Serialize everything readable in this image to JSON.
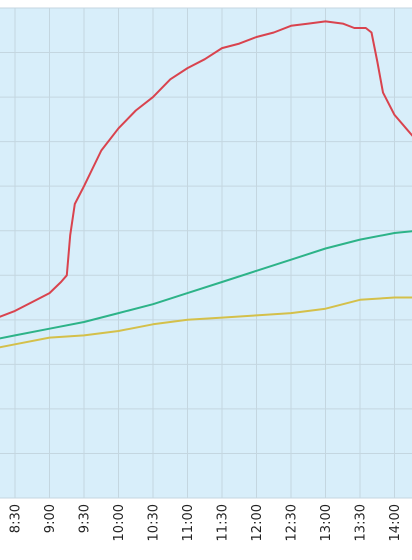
{
  "chart_data": {
    "type": "line",
    "title": "",
    "xlabel": "",
    "ylabel": "",
    "x_axis": {
      "kind": "time",
      "range": [
        "08:10",
        "14:20"
      ],
      "ticks": [
        "8:30",
        "9:00",
        "9:30",
        "10:00",
        "10:30",
        "11:00",
        "11:30",
        "12:00",
        "12:30",
        "13:00",
        "13:30",
        "14:00"
      ]
    },
    "y_axis": {
      "range": [
        0,
        11
      ],
      "tick_labels_visible": false,
      "gridlines": 11
    },
    "grid": true,
    "plot_background": "#d8eefa",
    "series": [
      {
        "color": "#d9434e",
        "x": [
          "08:10",
          "08:30",
          "08:45",
          "09:00",
          "09:10",
          "09:15",
          "09:18",
          "09:22",
          "09:30",
          "09:45",
          "10:00",
          "10:15",
          "10:30",
          "10:45",
          "11:00",
          "11:15",
          "11:30",
          "11:45",
          "12:00",
          "12:15",
          "12:30",
          "12:45",
          "13:00",
          "13:15",
          "13:25",
          "13:35",
          "13:40",
          "13:45",
          "13:50",
          "14:00",
          "14:10",
          "14:20"
        ],
        "y": [
          4.0,
          4.2,
          4.4,
          4.6,
          4.85,
          5.0,
          5.9,
          6.6,
          7.0,
          7.8,
          8.3,
          8.7,
          9.0,
          9.4,
          9.65,
          9.85,
          10.1,
          10.2,
          10.35,
          10.45,
          10.6,
          10.65,
          10.7,
          10.65,
          10.55,
          10.55,
          10.45,
          9.8,
          9.1,
          8.6,
          8.3,
          8.0
        ]
      },
      {
        "color": "#2db388",
        "x": [
          "08:10",
          "08:30",
          "09:00",
          "09:30",
          "10:00",
          "10:30",
          "11:00",
          "11:30",
          "12:00",
          "12:30",
          "13:00",
          "13:30",
          "14:00",
          "14:20"
        ],
        "y": [
          3.55,
          3.65,
          3.8,
          3.95,
          4.15,
          4.35,
          4.6,
          4.85,
          5.1,
          5.35,
          5.6,
          5.8,
          5.95,
          6.0
        ]
      },
      {
        "color": "#d4c04a",
        "x": [
          "08:10",
          "08:30",
          "09:00",
          "09:30",
          "10:00",
          "10:30",
          "11:00",
          "11:30",
          "12:00",
          "12:30",
          "13:00",
          "13:30",
          "14:00",
          "14:20"
        ],
        "y": [
          3.35,
          3.45,
          3.6,
          3.65,
          3.75,
          3.9,
          4.0,
          4.05,
          4.1,
          4.15,
          4.25,
          4.45,
          4.5,
          4.5
        ]
      }
    ]
  }
}
